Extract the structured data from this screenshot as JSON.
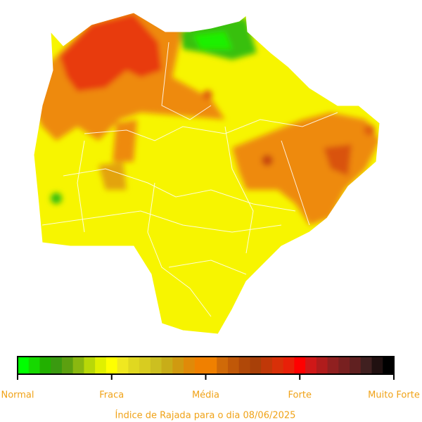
{
  "legend": {
    "labels": [
      "Normal",
      "Fraca",
      "Média",
      "Forte",
      "Muito Forte"
    ]
  },
  "caption": "Índice de Rajada para o dia 08/06/2025"
}
